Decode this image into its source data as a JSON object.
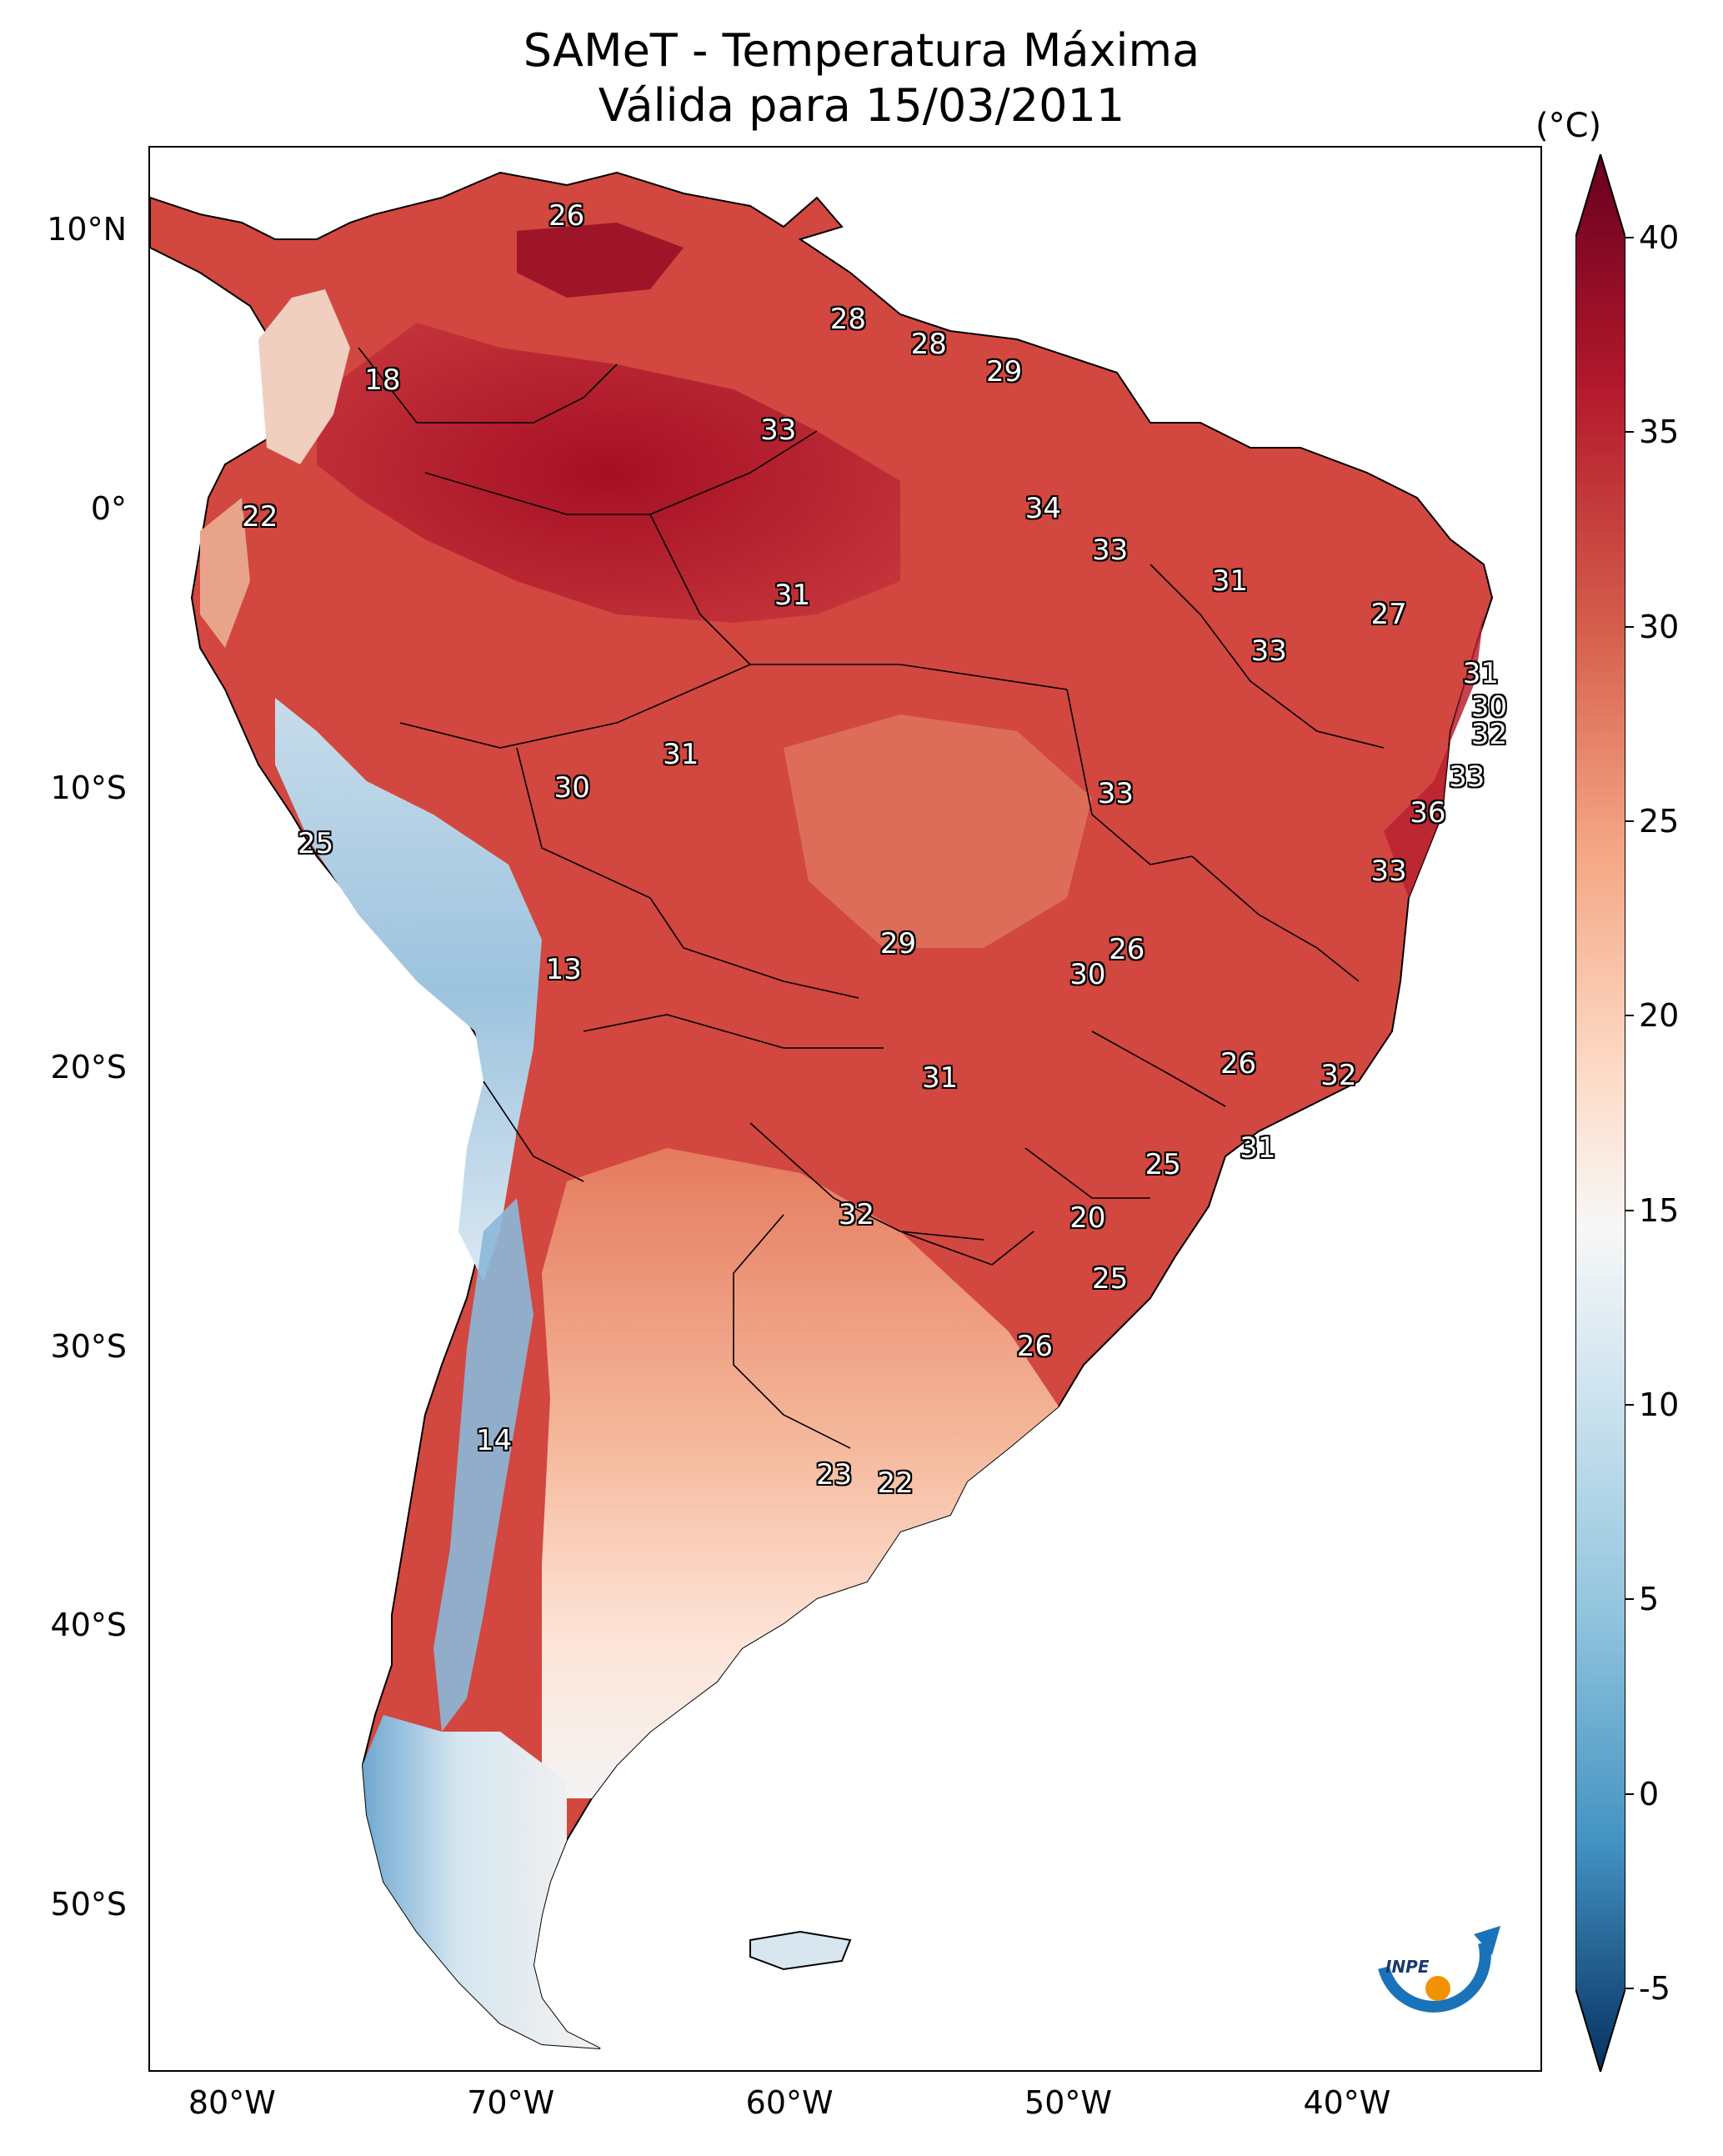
{
  "title": {
    "line1": "SAMeT - Temperatura Máxima",
    "line2": "Válida para 15/03/2011"
  },
  "axes": {
    "lat_ticks": [
      {
        "label": "10°N",
        "lat": 10
      },
      {
        "label": "0°",
        "lat": 0
      },
      {
        "label": "10°S",
        "lat": -10
      },
      {
        "label": "20°S",
        "lat": -20
      },
      {
        "label": "30°S",
        "lat": -30
      },
      {
        "label": "40°S",
        "lat": -40
      },
      {
        "label": "50°S",
        "lat": -50
      }
    ],
    "lon_ticks": [
      {
        "label": "80°W",
        "lon": -80
      },
      {
        "label": "70°W",
        "lon": -70
      },
      {
        "label": "60°W",
        "lon": -60
      },
      {
        "label": "50°W",
        "lon": -50
      },
      {
        "label": "40°W",
        "lon": -40
      }
    ],
    "lon_range": [
      -83,
      -33
    ],
    "lat_range": [
      -56,
      13
    ]
  },
  "colorbar": {
    "unit": "(°C)",
    "ticks": [
      "40",
      "35",
      "30",
      "25",
      "20",
      "15",
      "10",
      "5",
      "0",
      "-5"
    ],
    "range": [
      -5,
      40
    ],
    "colors": {
      "cold_extreme": "#08306b",
      "cold": "#2166ac",
      "cool": "#67a9cf",
      "mild": "#d1e5f0",
      "neutral": "#f7f7f7",
      "warm": "#fddbc7",
      "hot": "#ef8a62",
      "very_hot": "#d6604d",
      "extreme": "#b2182b",
      "max": "#67001f"
    }
  },
  "city_values": [
    {
      "text": "26",
      "lon": -68.0,
      "lat": 10.5
    },
    {
      "text": "28",
      "lon": -57.9,
      "lat": 6.8
    },
    {
      "text": "28",
      "lon": -55.0,
      "lat": 5.9
    },
    {
      "text": "29",
      "lon": -52.3,
      "lat": 4.9
    },
    {
      "text": "18",
      "lon": -74.6,
      "lat": 4.6
    },
    {
      "text": "33",
      "lon": -60.4,
      "lat": 2.8
    },
    {
      "text": "34",
      "lon": -50.9,
      "lat": 0.0
    },
    {
      "text": "22",
      "lon": -79.0,
      "lat": -0.3
    },
    {
      "text": "33",
      "lon": -48.5,
      "lat": -1.5
    },
    {
      "text": "31",
      "lon": -59.9,
      "lat": -3.1
    },
    {
      "text": "31",
      "lon": -44.2,
      "lat": -2.6
    },
    {
      "text": "27",
      "lon": -38.5,
      "lat": -3.8
    },
    {
      "text": "33",
      "lon": -42.8,
      "lat": -5.1
    },
    {
      "text": "31",
      "lon": -35.2,
      "lat": -5.9
    },
    {
      "text": "30",
      "lon": -34.9,
      "lat": -7.1
    },
    {
      "text": "32",
      "lon": -34.9,
      "lat": -8.1
    },
    {
      "text": "31",
      "lon": -63.9,
      "lat": -8.8
    },
    {
      "text": "30",
      "lon": -67.8,
      "lat": -10.0
    },
    {
      "text": "33",
      "lon": -48.3,
      "lat": -10.2
    },
    {
      "text": "33",
      "lon": -35.7,
      "lat": -9.6
    },
    {
      "text": "36",
      "lon": -37.1,
      "lat": -10.9
    },
    {
      "text": "25",
      "lon": -77.0,
      "lat": -12.0
    },
    {
      "text": "33",
      "lon": -38.5,
      "lat": -13.0
    },
    {
      "text": "26",
      "lon": -47.9,
      "lat": -15.8
    },
    {
      "text": "29",
      "lon": -56.1,
      "lat": -15.6
    },
    {
      "text": "30",
      "lon": -49.3,
      "lat": -16.7
    },
    {
      "text": "13",
      "lon": -68.1,
      "lat": -16.5
    },
    {
      "text": "26",
      "lon": -43.9,
      "lat": -19.9
    },
    {
      "text": "32",
      "lon": -40.3,
      "lat": -20.3
    },
    {
      "text": "31",
      "lon": -54.6,
      "lat": -20.4
    },
    {
      "text": "31",
      "lon": -43.2,
      "lat": -22.9
    },
    {
      "text": "25",
      "lon": -46.6,
      "lat": -23.5
    },
    {
      "text": "32",
      "lon": -57.6,
      "lat": -25.3
    },
    {
      "text": "20",
      "lon": -49.3,
      "lat": -25.4
    },
    {
      "text": "25",
      "lon": -48.5,
      "lat": -27.6
    },
    {
      "text": "26",
      "lon": -51.2,
      "lat": -30.0
    },
    {
      "text": "14",
      "lon": -70.6,
      "lat": -33.4
    },
    {
      "text": "23",
      "lon": -58.4,
      "lat": -34.6
    },
    {
      "text": "22",
      "lon": -56.2,
      "lat": -34.9
    }
  ],
  "logo_text": "INPE"
}
